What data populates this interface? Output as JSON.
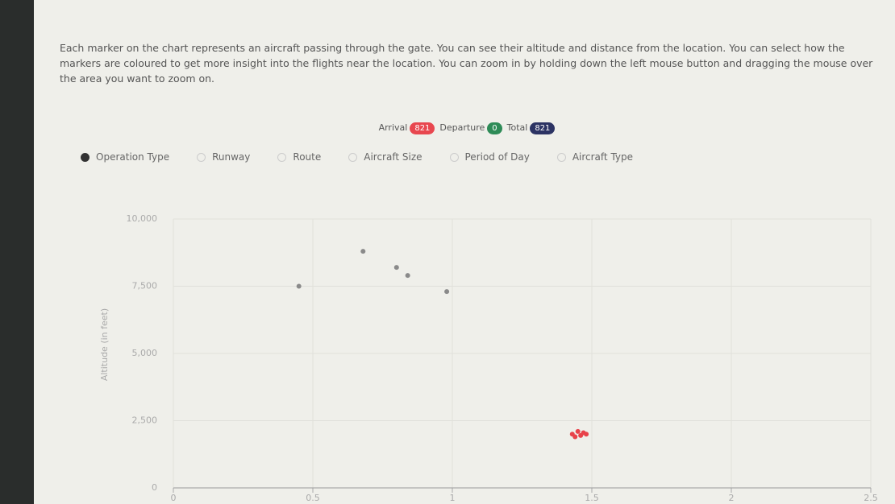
{
  "description": "Each marker on the chart represents an aircraft passing through the gate. You can see their altitude and distance from the location. You can select how the markers are coloured to get more insight into the flights near the location. You can zoom in by holding down the left mouse button and dragging the mouse over the area you want to zoom on.",
  "badges": [
    {
      "label": "Arrival",
      "count": 821,
      "color": "#e8474f"
    },
    {
      "label": "Departure",
      "count": 0,
      "color": "#2e8b57"
    },
    {
      "label": "Total",
      "count": 821,
      "color": "#2c3363"
    }
  ],
  "radio": {
    "options": [
      "Operation Type",
      "Runway",
      "Route",
      "Aircraft Size",
      "Period of Day",
      "Aircraft Type"
    ],
    "selected": 0
  },
  "chart_data": {
    "type": "scatter",
    "ylabel": "Altitude (in feet)",
    "series": [
      {
        "color": "#e8424a",
        "x": [
          1.43,
          1.45,
          1.46,
          1.47,
          1.44,
          1.48
        ],
        "values": [
          2000,
          2100,
          1950,
          2050,
          1900,
          2000
        ]
      },
      {
        "color": "#8a8a8a",
        "x": [
          0.68,
          0.8,
          0.84,
          0.98,
          0.45
        ],
        "values": [
          8800,
          8200,
          7900,
          7300,
          7500
        ]
      }
    ],
    "xlim": [
      0,
      2.5
    ],
    "xticks": [
      0,
      0.5,
      1,
      1.5,
      2,
      2.5
    ],
    "ylim": [
      0,
      10000
    ],
    "yticks": [
      0,
      {
        "value": 2500,
        "label": "2,500"
      },
      {
        "value": 5000,
        "label": "5,000"
      },
      {
        "value": 7500,
        "label": "7,500"
      },
      {
        "value": 10000,
        "label": "10,000"
      }
    ],
    "grid": true
  }
}
